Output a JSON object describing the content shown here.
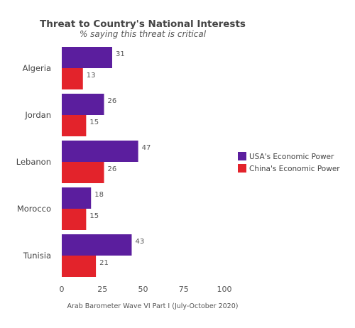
{
  "chart_data": {
    "type": "bar",
    "orientation": "horizontal",
    "title": "Threat to Country's National Interests",
    "subtitle": "% saying this threat is critical",
    "caption": "Arab Barometer Wave VI Part I (July-October 2020)",
    "categories": [
      "Algeria",
      "Jordan",
      "Lebanon",
      "Morocco",
      "Tunisia"
    ],
    "series": [
      {
        "name": "USA's Economic Power",
        "color": "#5b1e9e",
        "values": [
          31,
          26,
          47,
          18,
          43
        ]
      },
      {
        "name": "China's Economic Power",
        "color": "#e3232b",
        "values": [
          13,
          15,
          26,
          15,
          21
        ]
      }
    ],
    "xlim": [
      0,
      100
    ],
    "xticks": [
      0,
      25,
      50,
      75,
      100
    ],
    "xlabel": "",
    "ylabel": "",
    "grid": false,
    "legend": "right"
  }
}
